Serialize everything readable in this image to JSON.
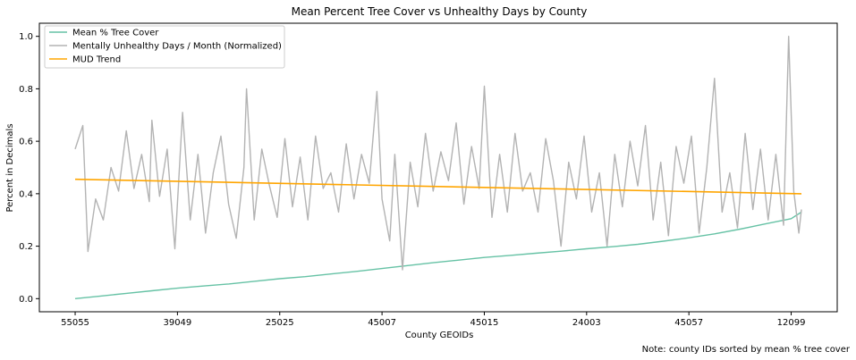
{
  "chart_data": {
    "type": "line",
    "title": "Mean Percent Tree Cover vs Unhealthy Days by County",
    "xlabel": "County GEOIDs",
    "ylabel": "Percent in Decimals",
    "note": "Note: county IDs sorted by mean % tree cover",
    "x_tick_labels": [
      "55055",
      "39049",
      "25025",
      "45007",
      "45015",
      "24003",
      "45057",
      "12099"
    ],
    "x_tick_positions": [
      0,
      40,
      80,
      120,
      160,
      200,
      240,
      280
    ],
    "x_count": 285,
    "y_ticks": [
      0.0,
      0.2,
      0.4,
      0.6,
      0.8,
      1.0
    ],
    "y_tick_labels": [
      "0.0",
      "0.2",
      "0.4",
      "0.6",
      "0.8",
      "1.0"
    ],
    "ylim": [
      -0.05,
      1.05
    ],
    "grid": false,
    "legend_position": "top-left",
    "series": [
      {
        "name": "Mean % Tree Cover",
        "color": "#66c2a5",
        "x": [
          0,
          10,
          20,
          30,
          40,
          50,
          60,
          70,
          80,
          90,
          100,
          110,
          120,
          130,
          140,
          150,
          160,
          170,
          180,
          190,
          200,
          210,
          220,
          230,
          240,
          250,
          260,
          270,
          280,
          284
        ],
        "values": [
          0.0,
          0.01,
          0.02,
          0.03,
          0.04,
          0.048,
          0.056,
          0.066,
          0.076,
          0.084,
          0.094,
          0.104,
          0.115,
          0.126,
          0.137,
          0.147,
          0.157,
          0.165,
          0.173,
          0.181,
          0.19,
          0.198,
          0.207,
          0.219,
          0.232,
          0.247,
          0.265,
          0.285,
          0.305,
          0.33
        ]
      },
      {
        "name": "Mentally Unhealthy Days / Month (Normalized)",
        "color": "#b3b3b3",
        "x": [
          0,
          3,
          5,
          8,
          11,
          14,
          17,
          20,
          23,
          26,
          29,
          30,
          33,
          36,
          39,
          42,
          45,
          48,
          51,
          54,
          57,
          60,
          63,
          66,
          67,
          70,
          73,
          76,
          79,
          82,
          85,
          88,
          91,
          94,
          97,
          100,
          103,
          106,
          109,
          112,
          115,
          118,
          120,
          123,
          125,
          128,
          131,
          134,
          137,
          140,
          143,
          146,
          149,
          152,
          155,
          158,
          160,
          163,
          166,
          169,
          172,
          175,
          178,
          181,
          184,
          187,
          190,
          193,
          196,
          199,
          202,
          205,
          208,
          211,
          214,
          217,
          220,
          223,
          226,
          229,
          232,
          235,
          238,
          241,
          244,
          247,
          250,
          253,
          256,
          259,
          262,
          265,
          268,
          271,
          274,
          277,
          279,
          281,
          283,
          284
        ],
        "values": [
          0.57,
          0.66,
          0.18,
          0.38,
          0.3,
          0.5,
          0.41,
          0.64,
          0.42,
          0.55,
          0.37,
          0.68,
          0.39,
          0.57,
          0.19,
          0.71,
          0.3,
          0.55,
          0.25,
          0.48,
          0.62,
          0.36,
          0.23,
          0.5,
          0.8,
          0.3,
          0.57,
          0.43,
          0.31,
          0.61,
          0.35,
          0.54,
          0.3,
          0.62,
          0.42,
          0.48,
          0.33,
          0.59,
          0.38,
          0.55,
          0.44,
          0.79,
          0.38,
          0.22,
          0.55,
          0.11,
          0.52,
          0.35,
          0.63,
          0.41,
          0.56,
          0.45,
          0.67,
          0.36,
          0.58,
          0.42,
          0.81,
          0.31,
          0.55,
          0.33,
          0.63,
          0.41,
          0.48,
          0.33,
          0.61,
          0.45,
          0.2,
          0.52,
          0.38,
          0.62,
          0.33,
          0.48,
          0.2,
          0.55,
          0.35,
          0.6,
          0.43,
          0.66,
          0.3,
          0.52,
          0.24,
          0.58,
          0.44,
          0.62,
          0.25,
          0.5,
          0.84,
          0.33,
          0.48,
          0.27,
          0.63,
          0.34,
          0.57,
          0.3,
          0.55,
          0.28,
          1.0,
          0.41,
          0.25,
          0.34
        ]
      },
      {
        "name": "MUD Trend",
        "color": "#ffa500",
        "x": [
          0,
          284
        ],
        "values": [
          0.455,
          0.4
        ]
      }
    ]
  }
}
